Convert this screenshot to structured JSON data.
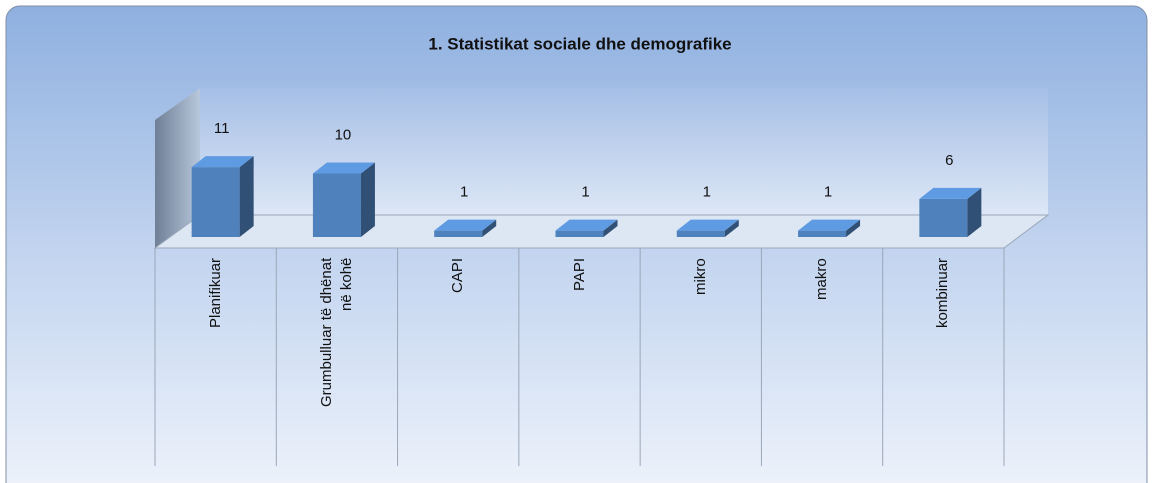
{
  "chart_data": {
    "type": "bar3d",
    "title": "1. Statistikat sociale dhe demografike",
    "categories": [
      "Planifikuar",
      "Grumbulluar të dhënat në kohë",
      "CAPI",
      "PAPI",
      "mikro",
      "makro",
      "kombinuar"
    ],
    "values": [
      11,
      10,
      1,
      1,
      1,
      1,
      6
    ],
    "color": "#4f81bd",
    "ylim": [
      0,
      20
    ]
  }
}
